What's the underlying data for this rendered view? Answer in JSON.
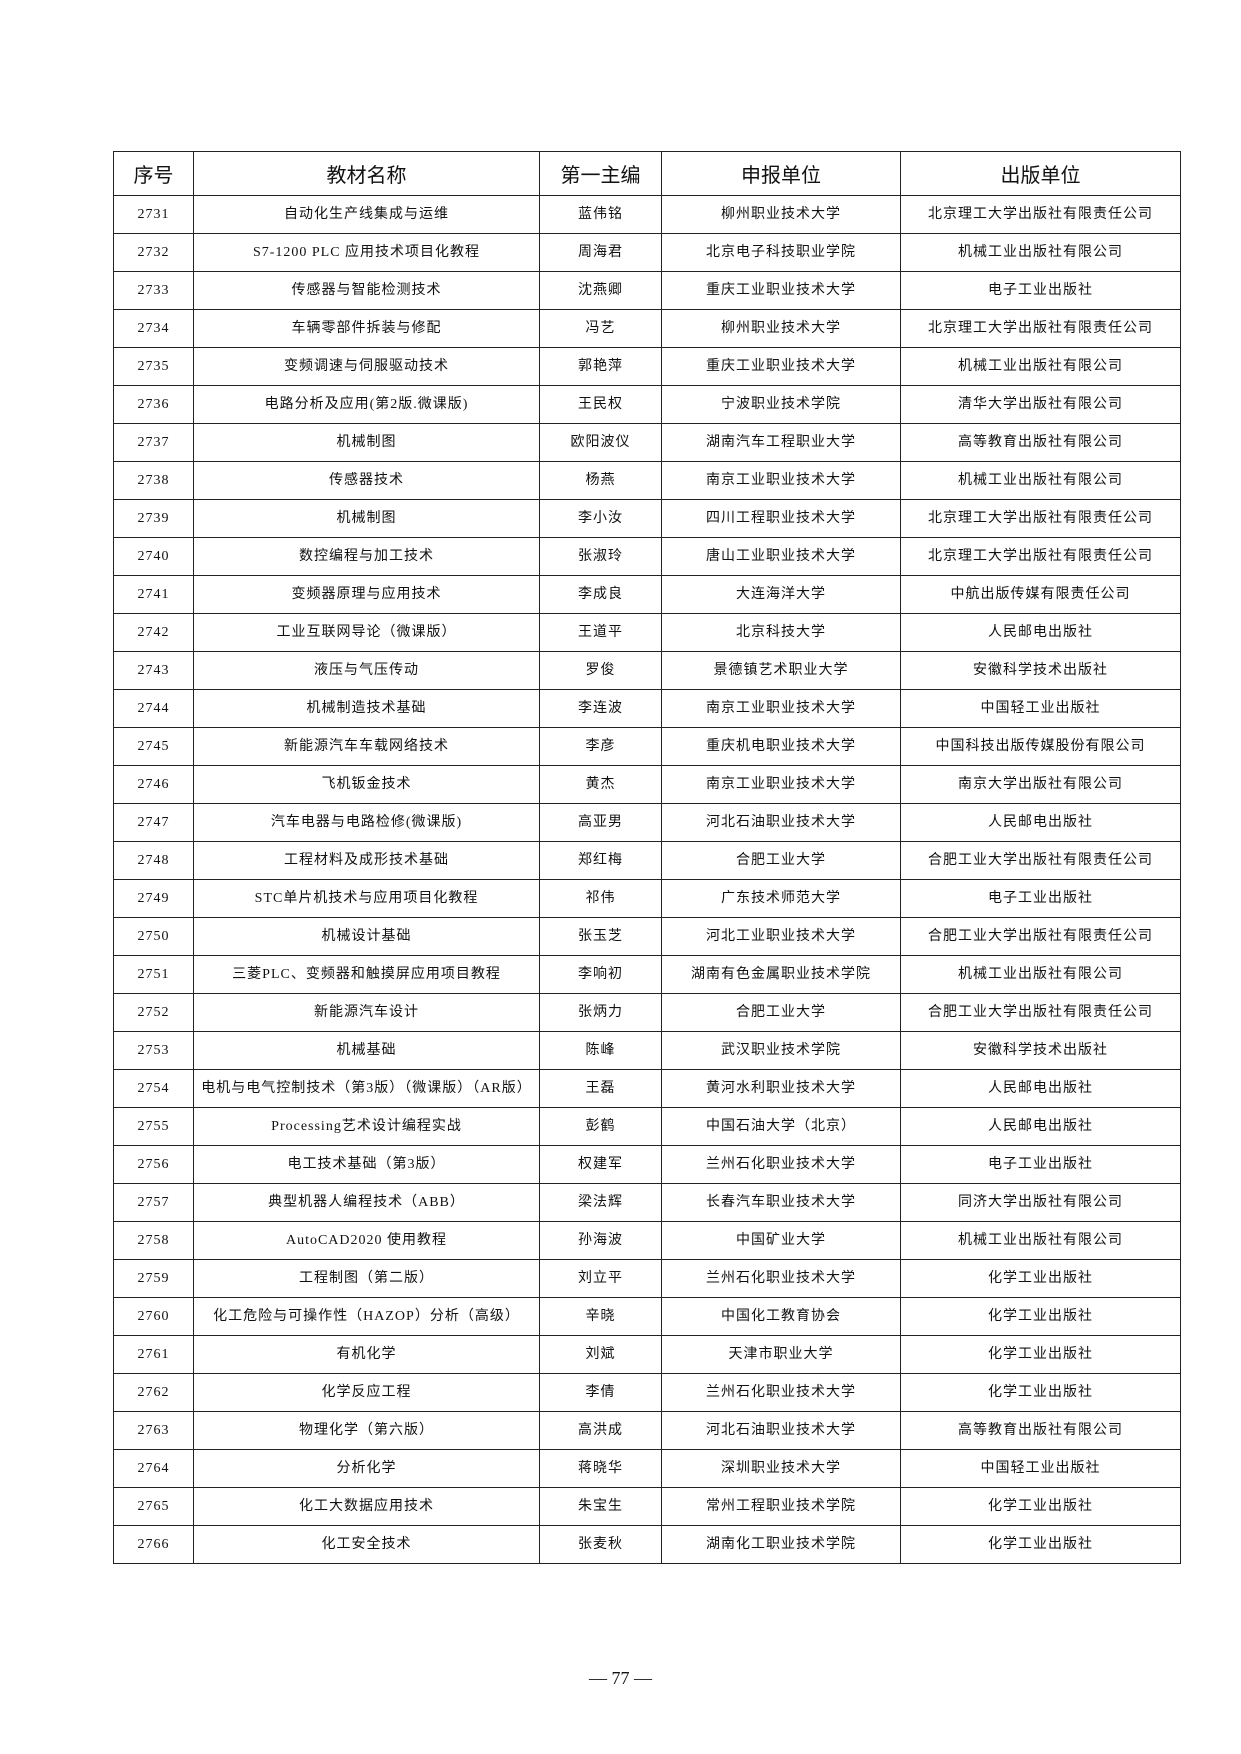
{
  "headers": [
    "序号",
    "教材名称",
    "第一主编",
    "申报单位",
    "出版单位"
  ],
  "rows": [
    [
      "2731",
      "自动化生产线集成与运维",
      "蓝伟铭",
      "柳州职业技术大学",
      "北京理工大学出版社有限责任公司"
    ],
    [
      "2732",
      "S7-1200 PLC 应用技术项目化教程",
      "周海君",
      "北京电子科技职业学院",
      "机械工业出版社有限公司"
    ],
    [
      "2733",
      "传感器与智能检测技术",
      "沈燕卿",
      "重庆工业职业技术大学",
      "电子工业出版社"
    ],
    [
      "2734",
      "车辆零部件拆装与修配",
      "冯艺",
      "柳州职业技术大学",
      "北京理工大学出版社有限责任公司"
    ],
    [
      "2735",
      "变频调速与伺服驱动技术",
      "郭艳萍",
      "重庆工业职业技术大学",
      "机械工业出版社有限公司"
    ],
    [
      "2736",
      "电路分析及应用(第2版.微课版)",
      "王民权",
      "宁波职业技术学院",
      "清华大学出版社有限公司"
    ],
    [
      "2737",
      "机械制图",
      "欧阳波仪",
      "湖南汽车工程职业大学",
      "高等教育出版社有限公司"
    ],
    [
      "2738",
      "传感器技术",
      "杨燕",
      "南京工业职业技术大学",
      "机械工业出版社有限公司"
    ],
    [
      "2739",
      "机械制图",
      "李小汝",
      "四川工程职业技术大学",
      "北京理工大学出版社有限责任公司"
    ],
    [
      "2740",
      "数控编程与加工技术",
      "张淑玲",
      "唐山工业职业技术大学",
      "北京理工大学出版社有限责任公司"
    ],
    [
      "2741",
      "变频器原理与应用技术",
      "李成良",
      "大连海洋大学",
      "中航出版传媒有限责任公司"
    ],
    [
      "2742",
      "工业互联网导论（微课版）",
      "王道平",
      "北京科技大学",
      "人民邮电出版社"
    ],
    [
      "2743",
      "液压与气压传动",
      "罗俊",
      "景德镇艺术职业大学",
      "安徽科学技术出版社"
    ],
    [
      "2744",
      "机械制造技术基础",
      "李连波",
      "南京工业职业技术大学",
      "中国轻工业出版社"
    ],
    [
      "2745",
      "新能源汽车车载网络技术",
      "李彦",
      "重庆机电职业技术大学",
      "中国科技出版传媒股份有限公司"
    ],
    [
      "2746",
      "飞机钣金技术",
      "黄杰",
      "南京工业职业技术大学",
      "南京大学出版社有限公司"
    ],
    [
      "2747",
      "汽车电器与电路检修(微课版)",
      "高亚男",
      "河北石油职业技术大学",
      "人民邮电出版社"
    ],
    [
      "2748",
      "工程材料及成形技术基础",
      "郑红梅",
      "合肥工业大学",
      "合肥工业大学出版社有限责任公司"
    ],
    [
      "2749",
      "STC单片机技术与应用项目化教程",
      "祁伟",
      "广东技术师范大学",
      "电子工业出版社"
    ],
    [
      "2750",
      "机械设计基础",
      "张玉芝",
      "河北工业职业技术大学",
      "合肥工业大学出版社有限责任公司"
    ],
    [
      "2751",
      "三菱PLC、变频器和触摸屏应用项目教程",
      "李响初",
      "湖南有色金属职业技术学院",
      "机械工业出版社有限公司"
    ],
    [
      "2752",
      "新能源汽车设计",
      "张炳力",
      "合肥工业大学",
      "合肥工业大学出版社有限责任公司"
    ],
    [
      "2753",
      "机械基础",
      "陈峰",
      "武汉职业技术学院",
      "安徽科学技术出版社"
    ],
    [
      "2754",
      "电机与电气控制技术（第3版）（微课版）（AR版）",
      "王磊",
      "黄河水利职业技术大学",
      "人民邮电出版社"
    ],
    [
      "2755",
      "Processing艺术设计编程实战",
      "彭鹤",
      "中国石油大学（北京）",
      "人民邮电出版社"
    ],
    [
      "2756",
      "电工技术基础（第3版）",
      "权建军",
      "兰州石化职业技术大学",
      "电子工业出版社"
    ],
    [
      "2757",
      "典型机器人编程技术（ABB）",
      "梁法辉",
      "长春汽车职业技术大学",
      "同济大学出版社有限公司"
    ],
    [
      "2758",
      "AutoCAD2020 使用教程",
      "孙海波",
      "中国矿业大学",
      "机械工业出版社有限公司"
    ],
    [
      "2759",
      "工程制图（第二版）",
      "刘立平",
      "兰州石化职业技术大学",
      "化学工业出版社"
    ],
    [
      "2760",
      "化工危险与可操作性（HAZOP）分析（高级）",
      "辛晓",
      "中国化工教育协会",
      "化学工业出版社"
    ],
    [
      "2761",
      "有机化学",
      "刘斌",
      "天津市职业大学",
      "化学工业出版社"
    ],
    [
      "2762",
      "化学反应工程",
      "李倩",
      "兰州石化职业技术大学",
      "化学工业出版社"
    ],
    [
      "2763",
      "物理化学（第六版）",
      "高洪成",
      "河北石油职业技术大学",
      "高等教育出版社有限公司"
    ],
    [
      "2764",
      "分析化学",
      "蒋晓华",
      "深圳职业技术大学",
      "中国轻工业出版社"
    ],
    [
      "2765",
      "化工大数据应用技术",
      "朱宝生",
      "常州工程职业技术学院",
      "化学工业出版社"
    ],
    [
      "2766",
      "化工安全技术",
      "张麦秋",
      "湖南化工职业技术学院",
      "化学工业出版社"
    ]
  ],
  "page_number": "— 77 —"
}
